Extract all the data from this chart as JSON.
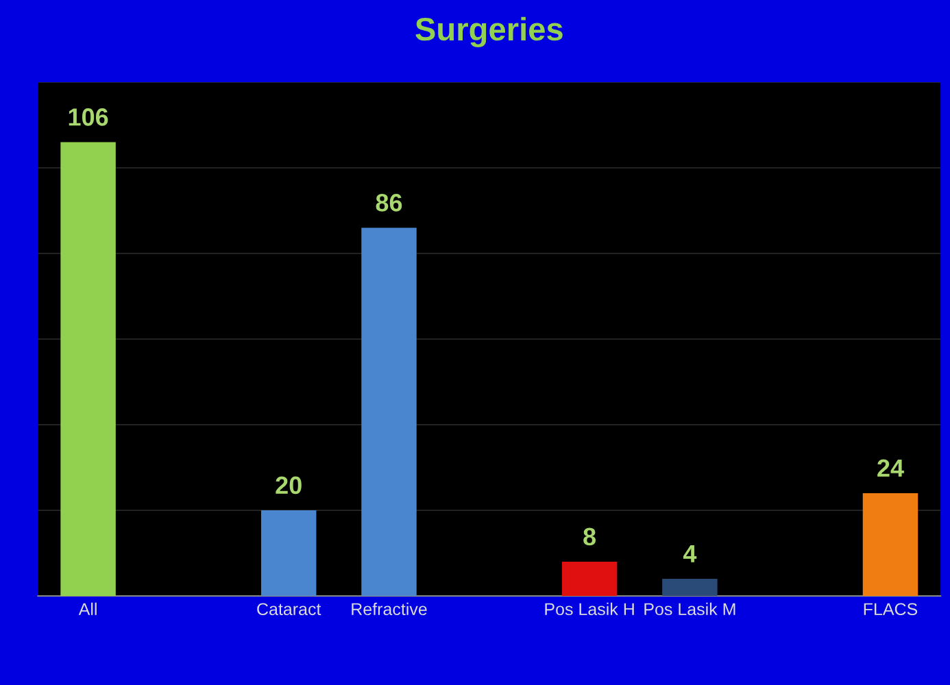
{
  "chart_data": {
    "type": "bar",
    "title": "Surgeries",
    "categories": [
      "All",
      null,
      "Cataract",
      "Refractive",
      null,
      "Pos Lasik H",
      "Pos Lasik M",
      null,
      "FLACS"
    ],
    "values": [
      106,
      null,
      20,
      86,
      null,
      8,
      4,
      null,
      24
    ],
    "colors": [
      "#92d050",
      "#000000",
      "#4a86d0",
      "#4a86d0",
      "#000000",
      "#e01010",
      "#2a4a78",
      "#000000",
      "#f07d12"
    ],
    "ylim": [
      0,
      120
    ],
    "yticks": [
      {
        "value": 0,
        "label": null
      },
      {
        "value": 20,
        "label": null
      },
      {
        "value": 40,
        "label": null
      },
      {
        "value": 60,
        "label": null
      },
      {
        "value": 80,
        "label": null
      },
      {
        "value": 100,
        "label": null
      },
      {
        "value": 120,
        "label": null
      }
    ],
    "grid": "y",
    "tick_labels": "x",
    "data_labels": true
  }
}
